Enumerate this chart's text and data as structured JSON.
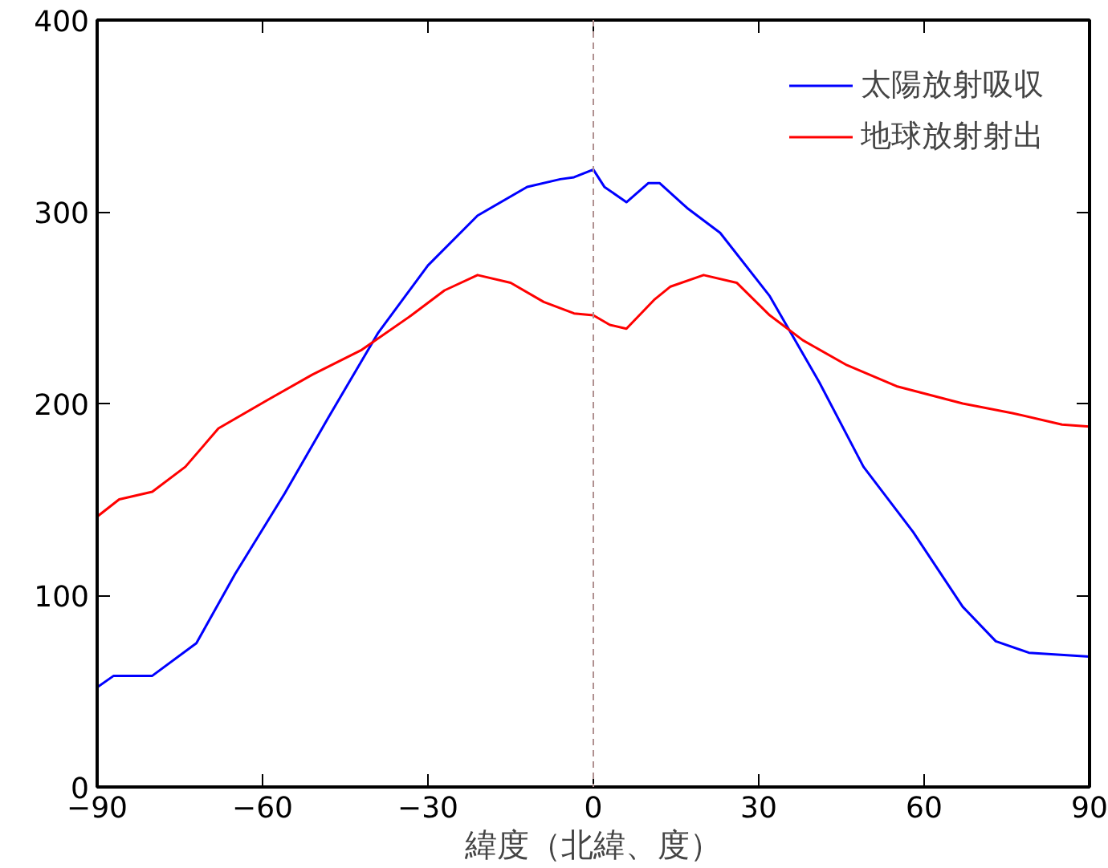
{
  "chart_data": {
    "type": "line",
    "xlabel": "緯度（北緯、度）",
    "xlim": [
      -90,
      90
    ],
    "xticks": [
      -90,
      -60,
      -30,
      0,
      30,
      60,
      90
    ],
    "ylim": [
      0,
      400
    ],
    "yticks": [
      0,
      100,
      200,
      300,
      400
    ],
    "grid": false,
    "legend": "top right",
    "line_style": "solid",
    "ref_lines": [
      {
        "axis": "x",
        "value": 0,
        "color": "#b09090",
        "line_style": "dashed"
      }
    ],
    "series": [
      {
        "name": "太陽放射吸収",
        "color": "#0000ff",
        "x": [
          -90,
          -87,
          -80,
          -72,
          -65,
          -56,
          -48,
          -39,
          -30,
          -21,
          -12,
          -6,
          -3.5,
          0,
          2,
          6,
          10,
          12,
          17,
          23,
          32,
          41,
          49,
          58,
          67,
          73,
          79,
          90
        ],
        "values": [
          52,
          58,
          58,
          75,
          111,
          153,
          193,
          237,
          272,
          298,
          313,
          317,
          318,
          322,
          313,
          305,
          315,
          315,
          302,
          289,
          256,
          211,
          167,
          133,
          94,
          76,
          70,
          68
        ]
      },
      {
        "name": "地球放射射出",
        "color": "#ff0000",
        "x": [
          -90,
          -86,
          -80,
          -74,
          -68,
          -59,
          -51,
          -42,
          -33,
          -27,
          -21,
          -15,
          -9,
          -3.5,
          0,
          3,
          6,
          11,
          14,
          20,
          26,
          32,
          38,
          46,
          55,
          67,
          76,
          85,
          90
        ],
        "values": [
          141,
          150,
          154,
          167,
          187,
          202,
          215,
          228,
          246,
          259,
          267,
          263,
          253,
          247,
          246,
          241,
          239,
          254,
          261,
          267,
          263,
          246,
          233,
          220,
          209,
          200,
          195,
          189,
          188
        ]
      }
    ]
  }
}
